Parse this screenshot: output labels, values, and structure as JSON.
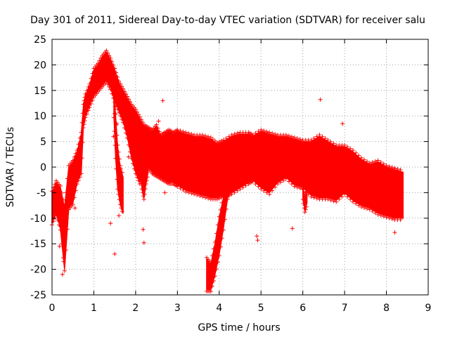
{
  "chart_data": {
    "type": "scatter",
    "title": "Day 301 of 2011, Sidereal Day-to-day VTEC variation (SDTVAR) for receiver salu",
    "xlabel": "GPS time / hours",
    "ylabel": "SDTVAR / TECUs",
    "xlim": [
      0,
      9
    ],
    "ylim": [
      -25,
      25
    ],
    "xticks": [
      0,
      1,
      2,
      3,
      4,
      5,
      6,
      7,
      8,
      9
    ],
    "yticks": [
      -25,
      -20,
      -15,
      -10,
      -5,
      0,
      5,
      10,
      15,
      20,
      25
    ],
    "grid": true,
    "marker": "+",
    "color": "#ff0000",
    "series": [
      {
        "name": "SDTVAR",
        "envelope": {
          "x": [
            0.0,
            0.1,
            0.2,
            0.3,
            0.4,
            0.5,
            0.6,
            0.7,
            0.75,
            0.8,
            0.9,
            1.0,
            1.1,
            1.2,
            1.3,
            1.4,
            1.5,
            1.6,
            1.7,
            1.8,
            1.9,
            2.0,
            2.1,
            2.2,
            2.3,
            2.4,
            2.5,
            2.6,
            2.7,
            2.8,
            2.9,
            3.0,
            3.2,
            3.4,
            3.6,
            3.8,
            3.95,
            4.1,
            4.3,
            4.5,
            4.7,
            4.8,
            5.0,
            5.2,
            5.4,
            5.6,
            5.8,
            6.0,
            6.2,
            6.4,
            6.6,
            6.8,
            7.0,
            7.2,
            7.4,
            7.6,
            7.8,
            8.0,
            8.2,
            8.4
          ],
          "upper": [
            -5.0,
            -3.0,
            -4.0,
            -8.0,
            0.0,
            1.0,
            3.0,
            6.5,
            12.0,
            14.0,
            16.0,
            19.0,
            20.0,
            21.5,
            22.5,
            21.0,
            19.0,
            16.5,
            15.0,
            13.5,
            12.0,
            11.0,
            9.5,
            8.0,
            7.5,
            7.0,
            8.0,
            6.0,
            6.5,
            7.0,
            6.5,
            7.0,
            6.5,
            6.0,
            6.0,
            5.5,
            4.5,
            5.0,
            6.0,
            6.5,
            6.5,
            6.0,
            7.0,
            6.5,
            6.0,
            6.0,
            5.5,
            5.0,
            5.0,
            6.0,
            5.0,
            4.0,
            4.0,
            3.0,
            1.5,
            0.5,
            1.0,
            0.0,
            -0.5,
            -1.0
          ],
          "lower": [
            -11.0,
            -9.0,
            -12.0,
            -20.0,
            -8.0,
            -7.0,
            -3.0,
            -1.0,
            8.0,
            10.0,
            12.0,
            14.0,
            15.0,
            16.0,
            17.0,
            15.5,
            13.0,
            11.0,
            9.0,
            6.0,
            2.0,
            -1.0,
            -3.0,
            -0.5,
            0.0,
            -1.0,
            -1.5,
            -2.0,
            -2.5,
            -3.0,
            -3.0,
            -3.5,
            -4.5,
            -5.0,
            -5.5,
            -6.0,
            -6.0,
            -5.5,
            -5.0,
            -4.0,
            -3.0,
            -2.5,
            -4.0,
            -5.0,
            -3.0,
            -2.0,
            -3.5,
            -4.0,
            -5.5,
            -6.0,
            -6.0,
            -6.5,
            -5.0,
            -6.5,
            -7.5,
            -8.0,
            -9.0,
            -9.5,
            -10.0,
            -10.0
          ]
        },
        "branches": [
          {
            "x": [
              1.48,
              1.52,
              1.57,
              1.63,
              1.7
            ],
            "upper": [
              15.0,
              10.0,
              4.0,
              0.0,
              -2.0
            ],
            "lower": [
              10.0,
              2.0,
              -4.0,
              -7.0,
              -9.0
            ]
          },
          {
            "x": [
              2.1,
              2.15,
              2.2,
              2.25,
              2.3
            ],
            "upper": [
              3.0,
              1.0,
              -1.0,
              0.0,
              2.0
            ],
            "lower": [
              -0.5,
              -4.0,
              -6.0,
              -3.0,
              -1.0
            ]
          },
          {
            "x": [
              3.7,
              3.8,
              3.9,
              4.0,
              4.1,
              4.2,
              4.3
            ],
            "upper": [
              -18.0,
              -19.0,
              -15.0,
              -10.0,
              -6.0,
              -3.0,
              -2.0
            ],
            "lower": [
              -24.0,
              -24.0,
              -21.0,
              -17.0,
              -12.0,
              -6.0,
              -4.0
            ]
          },
          {
            "x": [
              6.0,
              6.05,
              6.1
            ],
            "upper": [
              -4.0,
              -6.0,
              -5.0
            ],
            "lower": [
              -6.0,
              -8.5,
              -7.0
            ]
          }
        ],
        "outliers": [
          [
            1.4,
            -11.0
          ],
          [
            1.47,
            6.0
          ],
          [
            1.5,
            -17.0
          ],
          [
            1.6,
            -9.5
          ],
          [
            1.83,
            2.0
          ],
          [
            2.18,
            -12.2
          ],
          [
            2.2,
            -14.8
          ],
          [
            2.55,
            9.0
          ],
          [
            2.65,
            13.0
          ],
          [
            2.7,
            -5.0
          ],
          [
            4.9,
            -13.5
          ],
          [
            4.92,
            -14.3
          ],
          [
            5.75,
            -12.0
          ],
          [
            6.42,
            13.2
          ],
          [
            6.95,
            8.5
          ],
          [
            8.2,
            -12.8
          ],
          [
            1.5,
            10.5
          ],
          [
            1.55,
            8.5
          ],
          [
            1.65,
            -2.0
          ],
          [
            0.25,
            -21.0
          ],
          [
            0.18,
            -15.5
          ],
          [
            0.28,
            -18.5
          ],
          [
            0.45,
            -5.5
          ],
          [
            0.55,
            -8.0
          ]
        ]
      }
    ]
  }
}
